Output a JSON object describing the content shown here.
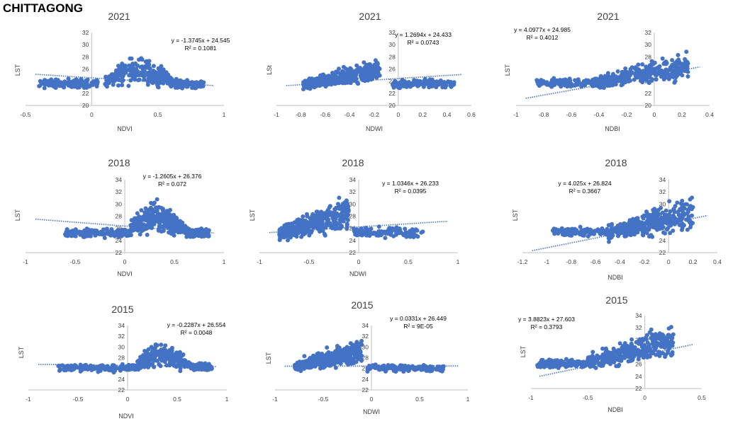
{
  "title": "CHITTAGONG",
  "colors": {
    "point": "#4472C4",
    "trend": "#4472C4",
    "axis": "#bfbfbf",
    "text": "#404040"
  },
  "chart_data": [
    {
      "type": "scatter",
      "title": "2021",
      "xlabel": "NDVI",
      "ylabel": "LST",
      "xlim": [
        -0.5,
        1
      ],
      "ylim": [
        20,
        32
      ],
      "xticks": [
        -0.5,
        0,
        0.5,
        1
      ],
      "xtick_labels": [
        "-0.5",
        "0",
        "0.5",
        "1"
      ],
      "yticks": [
        20,
        22,
        24,
        26,
        28,
        30,
        32
      ],
      "ytick_labels": [
        "20",
        "22",
        "24",
        "26",
        "28",
        "30",
        "32"
      ],
      "trendline": {
        "slope": -1.3745,
        "intercept": 24.545
      },
      "equation": "y = -1.3745x + 24.545",
      "r2": "R² = 0.1081",
      "clusters": [
        {
          "x": [
            -0.4,
            0.05
          ],
          "y": [
            22.6,
            24.6
          ],
          "n": 150,
          "shape": "flat"
        },
        {
          "x": [
            0.1,
            0.85
          ],
          "y": [
            22.3,
            29.5
          ],
          "n": 380,
          "shape": "hump"
        }
      ]
    },
    {
      "type": "scatter",
      "title": "2021",
      "xlabel": "NDWI",
      "ylabel": "LSt",
      "xlim": [
        -1,
        0.6
      ],
      "ylim": [
        20,
        32
      ],
      "xticks": [
        -1,
        -0.8,
        -0.6,
        -0.4,
        -0.2,
        0,
        0.2,
        0.4,
        0.6
      ],
      "xtick_labels": [
        "-1",
        "-0.8",
        "-0.6",
        "-0.4",
        "-0.2",
        "0",
        "0.2",
        "0.4",
        "0.6"
      ],
      "yticks": [
        20,
        22,
        24,
        26,
        28,
        30,
        32
      ],
      "ytick_labels": [
        "20",
        "22",
        "24",
        "26",
        "28",
        "30",
        "32"
      ],
      "trendline": {
        "slope": 1.2694,
        "intercept": 24.433
      },
      "equation": "y = 1.2694x + 24.433",
      "r2": "R² = 0.0743",
      "clusters": [
        {
          "x": [
            -0.78,
            -0.15
          ],
          "y": [
            22.2,
            28.5
          ],
          "n": 380,
          "shape": "rise"
        },
        {
          "x": [
            -0.05,
            0.47
          ],
          "y": [
            22.6,
            24.5
          ],
          "n": 130,
          "shape": "flat"
        }
      ]
    },
    {
      "type": "scatter",
      "title": "2021",
      "xlabel": "NDBI",
      "ylabel": "LST",
      "xlim": [
        -1,
        0.4
      ],
      "ylim": [
        20,
        32
      ],
      "xticks": [
        -1,
        -0.8,
        -0.6,
        -0.4,
        -0.2,
        0,
        0.2,
        0.4
      ],
      "xtick_labels": [
        "-1",
        "-0.8",
        "-0.6",
        "-0.4",
        "-0.2",
        "0",
        "0.2",
        "0.4"
      ],
      "yticks": [
        20,
        22,
        24,
        26,
        28,
        30,
        32
      ],
      "ytick_labels": [
        "20",
        "22",
        "24",
        "26",
        "28",
        "30",
        "32"
      ],
      "trendline": {
        "slope": 4.0977,
        "intercept": 24.985
      },
      "equation": "y = 4.0977x + 24.985",
      "r2": "R² = 0.4012",
      "clusters": [
        {
          "x": [
            -0.85,
            -0.3
          ],
          "y": [
            22.6,
            24.8
          ],
          "n": 140,
          "shape": "flat"
        },
        {
          "x": [
            -0.45,
            0.25
          ],
          "y": [
            22.5,
            29.5
          ],
          "n": 360,
          "shape": "rise"
        }
      ]
    },
    {
      "type": "scatter",
      "title": "2018",
      "xlabel": "NDVI",
      "ylabel": "LST",
      "xlim": [
        -1,
        1
      ],
      "ylim": [
        22,
        34
      ],
      "xticks": [
        -1,
        -0.5,
        0,
        0.5,
        1
      ],
      "xtick_labels": [
        "-1",
        "-0.5",
        "0",
        "0.5",
        "1"
      ],
      "yticks": [
        22,
        24,
        26,
        28,
        30,
        32,
        34
      ],
      "ytick_labels": [
        "22",
        "24",
        "26",
        "28",
        "30",
        "32",
        "34"
      ],
      "trendline": {
        "slope": -1.2605,
        "intercept": 26.376
      },
      "equation": "y = -1.2605x + 26.376",
      "r2": "R² = 0.072",
      "clusters": [
        {
          "x": [
            -0.6,
            0.05
          ],
          "y": [
            24.3,
            26.2
          ],
          "n": 140,
          "shape": "flat"
        },
        {
          "x": [
            0.05,
            0.85
          ],
          "y": [
            23.8,
            32.3
          ],
          "n": 380,
          "shape": "hump"
        }
      ]
    },
    {
      "type": "scatter",
      "title": "2018",
      "xlabel": "NDWI",
      "ylabel": "LST",
      "xlim": [
        -1,
        1
      ],
      "ylim": [
        22,
        34
      ],
      "xticks": [
        -1,
        -0.5,
        0,
        0.5,
        1
      ],
      "xtick_labels": [
        "-1",
        "-0.5",
        "0",
        "0.5",
        "1"
      ],
      "yticks": [
        22,
        24,
        26,
        28,
        30,
        32,
        34
      ],
      "ytick_labels": [
        "22",
        "24",
        "26",
        "28",
        "30",
        "32",
        "34"
      ],
      "trendline": {
        "slope": 1.0346,
        "intercept": 26.233
      },
      "equation": "y = 1.0346x + 26.233",
      "r2": "R² = 0.0395",
      "clusters": [
        {
          "x": [
            -0.8,
            -0.1
          ],
          "y": [
            23.5,
            32.5
          ],
          "n": 380,
          "shape": "rise"
        },
        {
          "x": [
            -0.05,
            0.65
          ],
          "y": [
            24.2,
            26.5
          ],
          "n": 130,
          "shape": "flat"
        }
      ]
    },
    {
      "type": "scatter",
      "title": "2018",
      "xlabel": "NDBI",
      "ylabel": "LST",
      "xlim": [
        -1.2,
        0.4
      ],
      "ylim": [
        22,
        34
      ],
      "xticks": [
        -1.2,
        -1,
        -0.8,
        -0.6,
        -0.4,
        -0.2,
        0,
        0.2,
        0.4
      ],
      "xtick_labels": [
        "-1.2",
        "-1",
        "-0.8",
        "-0.6",
        "-0.4",
        "-0.2",
        "0",
        "0.2",
        "0.4"
      ],
      "yticks": [
        22,
        24,
        26,
        28,
        30,
        32,
        34
      ],
      "ytick_labels": [
        "22",
        "24",
        "26",
        "28",
        "30",
        "32",
        "34"
      ],
      "trendline": {
        "slope": 4.025,
        "intercept": 26.824
      },
      "equation": "y = 4.025x + 26.824",
      "r2": "R² = 0.3667",
      "clusters": [
        {
          "x": [
            -0.95,
            -0.5
          ],
          "y": [
            24.4,
            26.4
          ],
          "n": 120,
          "shape": "flat"
        },
        {
          "x": [
            -0.5,
            0.2
          ],
          "y": [
            23.5,
            32.5
          ],
          "n": 380,
          "shape": "rise"
        }
      ]
    },
    {
      "type": "scatter",
      "title": "2015",
      "xlabel": "NDVI",
      "ylabel": "LST",
      "xlim": [
        -1,
        1
      ],
      "ylim": [
        22,
        34
      ],
      "xticks": [
        -1,
        -0.5,
        0,
        0.5,
        1
      ],
      "xtick_labels": [
        "-1",
        "-0.5",
        "0",
        "0.5",
        "1"
      ],
      "yticks": [
        22,
        24,
        26,
        28,
        30,
        32,
        34
      ],
      "ytick_labels": [
        "22",
        "24",
        "26",
        "28",
        "30",
        "32",
        "34"
      ],
      "trendline": {
        "slope": -0.2287,
        "intercept": 26.554
      },
      "equation": "y = -0.2287x + 26.554",
      "r2": "R² = 0.0048",
      "clusters": [
        {
          "x": [
            -0.7,
            0.1
          ],
          "y": [
            25.2,
            27.0
          ],
          "n": 150,
          "shape": "flat"
        },
        {
          "x": [
            0.1,
            0.85
          ],
          "y": [
            25.0,
            32.5
          ],
          "n": 380,
          "shape": "hump"
        }
      ]
    },
    {
      "type": "scatter",
      "title": "2015",
      "xlabel": "NDWI",
      "ylabel": "LST",
      "xlim": [
        -1,
        1
      ],
      "ylim": [
        22,
        34
      ],
      "xticks": [
        -1,
        -0.5,
        0,
        0.5,
        1
      ],
      "xtick_labels": [
        "-1",
        "-0.5",
        "0",
        "0.5",
        "1"
      ],
      "yticks": [
        22,
        24,
        26,
        28,
        30,
        32,
        34
      ],
      "ytick_labels": [
        "22",
        "24",
        "26",
        "28",
        "30",
        "32",
        "34"
      ],
      "trendline": {
        "slope": 0.0331,
        "intercept": 26.449
      },
      "equation": "y = 0.0331x + 26.449",
      "r2": "R² = 9E-05",
      "clusters": [
        {
          "x": [
            -0.8,
            -0.1
          ],
          "y": [
            25.0,
            32.5
          ],
          "n": 380,
          "shape": "rise"
        },
        {
          "x": [
            -0.05,
            0.75
          ],
          "y": [
            25.2,
            27.0
          ],
          "n": 140,
          "shape": "flat"
        }
      ]
    },
    {
      "type": "scatter",
      "title": "2015",
      "xlabel": "NDBI",
      "ylabel": "LST",
      "xlim": [
        -1,
        0.5
      ],
      "ylim": [
        22,
        34
      ],
      "xticks": [
        -1,
        -0.5,
        0,
        0.5
      ],
      "xtick_labels": [
        "-1",
        "-0.5",
        "0",
        "0.5"
      ],
      "yticks": [
        22,
        24,
        26,
        28,
        30,
        32,
        34
      ],
      "ytick_labels": [
        "22",
        "24",
        "26",
        "28",
        "30",
        "32",
        "34"
      ],
      "trendline": {
        "slope": 3.8823,
        "intercept": 27.603
      },
      "equation": "y = 3.8823x + 27.603",
      "r2": "R² = 0.3793",
      "clusters": [
        {
          "x": [
            -0.95,
            -0.5
          ],
          "y": [
            25.2,
            27.0
          ],
          "n": 140,
          "shape": "flat"
        },
        {
          "x": [
            -0.5,
            0.25
          ],
          "y": [
            24.8,
            33.5
          ],
          "n": 380,
          "shape": "rise"
        }
      ]
    }
  ]
}
